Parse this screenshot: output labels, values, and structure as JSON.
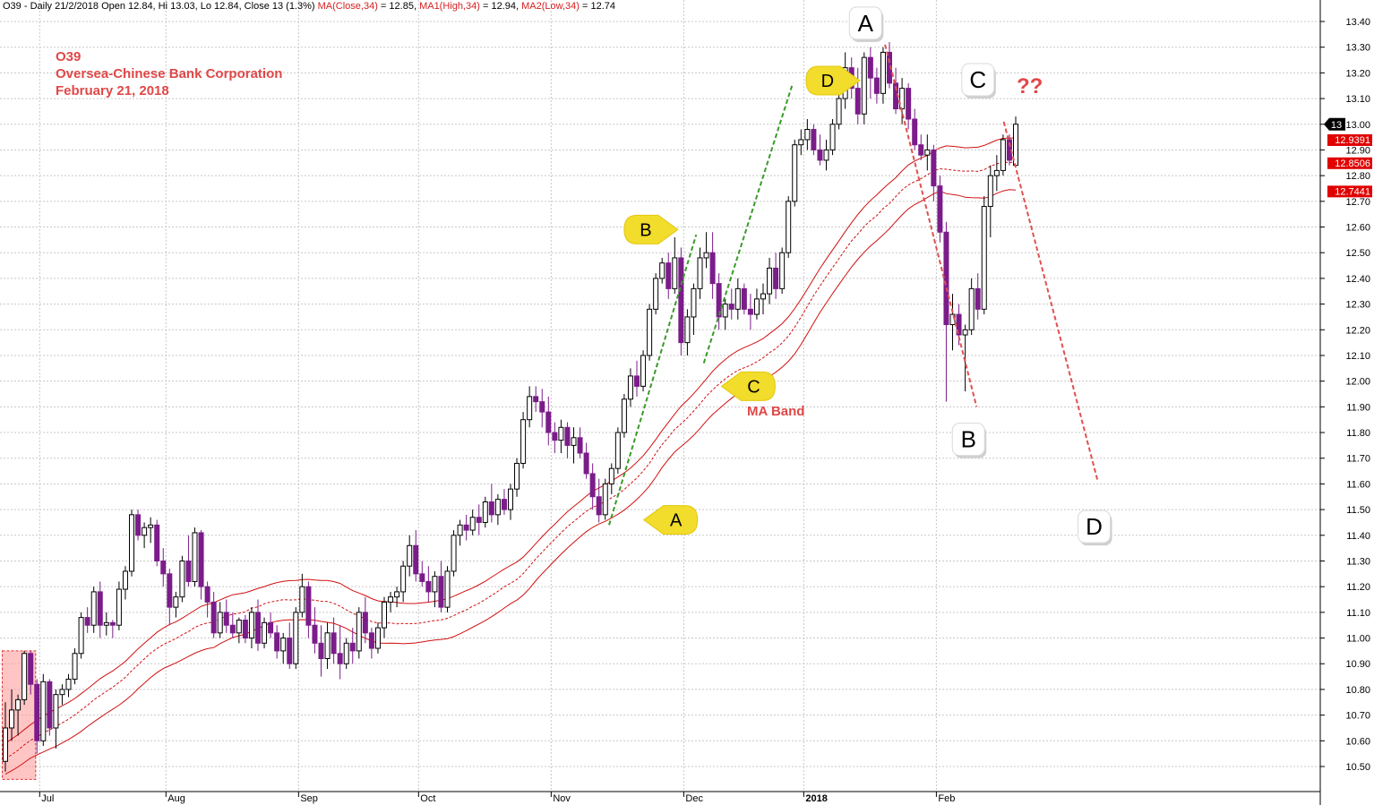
{
  "header": {
    "prefix": "O39 - Daily 21/2/2018 Open 12.84, Hi 13.03, Lo 12.84, Close 13 (1.3%)",
    "ma": "MA(Close,34)",
    "ma_val": " = 12.85, ",
    "ma1": "MA1(High,34)",
    "ma1_val": " = 12.94, ",
    "ma2": "MA2(Low,34)",
    "ma2_val": " = 12.74"
  },
  "title": {
    "ticker": "O39",
    "company": "Oversea-Chinese Bank Corporation",
    "date": "February 21, 2018"
  },
  "chart_data": {
    "type": "candlestick",
    "ylim": [
      10.43,
      13.45
    ],
    "y_ticks": [
      "10.50",
      "10.60",
      "10.70",
      "10.80",
      "10.90",
      "11.00",
      "11.10",
      "11.20",
      "11.30",
      "11.40",
      "11.50",
      "11.60",
      "11.70",
      "11.80",
      "11.90",
      "12.00",
      "12.10",
      "12.20",
      "12.30",
      "12.40",
      "12.50",
      "12.60",
      "12.70",
      "12.80",
      "12.90",
      "13.00",
      "13.10",
      "13.20",
      "13.30",
      "13.40"
    ],
    "x_labels": [
      {
        "label": "Jul",
        "bar": 6,
        "bold": false
      },
      {
        "label": "Aug",
        "bar": 26,
        "bold": false
      },
      {
        "label": "Sep",
        "bar": 47,
        "bold": false
      },
      {
        "label": "Oct",
        "bar": 66,
        "bold": false
      },
      {
        "label": "Nov",
        "bar": 87,
        "bold": false
      },
      {
        "label": "Dec",
        "bar": 108,
        "bold": false
      },
      {
        "label": "2018",
        "bar": 127,
        "bold": true
      },
      {
        "label": "Feb",
        "bar": 148,
        "bold": false
      }
    ],
    "price_tags": [
      {
        "label": "13",
        "value": 13.0,
        "color": "#000000"
      },
      {
        "label": "12.9391",
        "value": 12.94,
        "color": "#e00000"
      },
      {
        "label": "12.8506",
        "value": 12.85,
        "color": "#e00000"
      },
      {
        "label": "12.7441",
        "value": 12.74,
        "color": "#e00000"
      }
    ],
    "annotation_labels": {
      "ma_band": "MA Band",
      "question": "??"
    },
    "wave_labels_big": [
      {
        "label": "A",
        "bar": 136.5,
        "value": 13.39
      },
      {
        "label": "C",
        "bar": 154.3,
        "value": 13.17
      },
      {
        "label": "B",
        "bar": 152.8,
        "value": 11.77
      },
      {
        "label": "D",
        "bar": 172.7,
        "value": 11.43
      }
    ],
    "wave_labels_pointer": [
      {
        "label": "B",
        "bar": 101.4,
        "value": 12.59
      },
      {
        "label": "D",
        "bar": 130.2,
        "value": 13.17
      },
      {
        "label": "C",
        "bar": 118.5,
        "value": 11.98
      },
      {
        "label": "A",
        "bar": 106.2,
        "value": 11.46
      }
    ],
    "green_trendlines": [
      {
        "x1": 95.6,
        "y1": 11.44,
        "x2": 109.4,
        "y2": 12.57
      },
      {
        "x1": 110.6,
        "y1": 12.07,
        "x2": 124.7,
        "y2": 13.16
      }
    ],
    "red_trendlines": [
      {
        "x1": 139.3,
        "y1": 13.31,
        "x2": 153.8,
        "y2": 11.9
      },
      {
        "x1": 158.1,
        "y1": 13.01,
        "x2": 173.0,
        "y2": 11.61
      }
    ],
    "highlight_box": {
      "bar_start": -0.5,
      "bar_end": 4.8,
      "value_low": 10.45,
      "value_high": 10.95
    },
    "ohlc": [
      [
        10.52,
        10.75,
        10.48,
        10.65
      ],
      [
        10.65,
        10.8,
        10.6,
        10.72
      ],
      [
        10.72,
        10.78,
        10.62,
        10.76
      ],
      [
        10.76,
        10.95,
        10.74,
        10.94
      ],
      [
        10.94,
        10.95,
        10.78,
        10.82
      ],
      [
        10.82,
        10.84,
        10.55,
        10.6
      ],
      [
        10.6,
        10.86,
        10.58,
        10.83
      ],
      [
        10.83,
        10.84,
        10.62,
        10.65
      ],
      [
        10.65,
        10.8,
        10.57,
        10.78
      ],
      [
        10.78,
        10.82,
        10.74,
        10.8
      ],
      [
        10.8,
        10.86,
        10.77,
        10.84
      ],
      [
        10.84,
        10.96,
        10.82,
        10.94
      ],
      [
        10.94,
        11.1,
        10.92,
        11.08
      ],
      [
        11.08,
        11.12,
        11.02,
        11.05
      ],
      [
        11.05,
        11.2,
        11.02,
        11.18
      ],
      [
        11.18,
        11.22,
        11.0,
        11.05
      ],
      [
        11.05,
        11.1,
        11.01,
        11.06
      ],
      [
        11.06,
        11.07,
        11.0,
        11.05
      ],
      [
        11.05,
        11.22,
        11.03,
        11.19
      ],
      [
        11.19,
        11.28,
        11.15,
        11.26
      ],
      [
        11.26,
        11.5,
        11.24,
        11.48
      ],
      [
        11.48,
        11.5,
        11.38,
        11.4
      ],
      [
        11.4,
        11.45,
        11.35,
        11.43
      ],
      [
        11.43,
        11.47,
        11.37,
        11.44
      ],
      [
        11.44,
        11.46,
        11.28,
        11.3
      ],
      [
        11.3,
        11.35,
        11.2,
        11.25
      ],
      [
        11.25,
        11.27,
        11.05,
        11.12
      ],
      [
        11.12,
        11.18,
        11.08,
        11.16
      ],
      [
        11.16,
        11.32,
        11.14,
        11.3
      ],
      [
        11.3,
        11.4,
        11.2,
        11.22
      ],
      [
        11.22,
        11.43,
        11.2,
        11.41
      ],
      [
        11.41,
        11.42,
        11.15,
        11.2
      ],
      [
        11.2,
        11.22,
        11.08,
        11.14
      ],
      [
        11.14,
        11.18,
        11.0,
        11.02
      ],
      [
        11.02,
        11.14,
        11.0,
        11.1
      ],
      [
        11.1,
        11.15,
        11.02,
        11.05
      ],
      [
        11.05,
        11.1,
        11.0,
        11.02
      ],
      [
        11.02,
        11.08,
        10.98,
        11.07
      ],
      [
        11.07,
        11.09,
        10.98,
        11.0
      ],
      [
        11.0,
        11.12,
        10.96,
        11.1
      ],
      [
        11.1,
        11.15,
        10.95,
        10.98
      ],
      [
        10.98,
        11.08,
        10.96,
        11.06
      ],
      [
        11.06,
        11.1,
        11.0,
        11.02
      ],
      [
        11.02,
        11.05,
        10.92,
        10.95
      ],
      [
        10.95,
        11.02,
        10.9,
        11.0
      ],
      [
        11.0,
        11.06,
        10.88,
        10.9
      ],
      [
        10.9,
        11.12,
        10.88,
        11.1
      ],
      [
        11.1,
        11.25,
        11.08,
        11.2
      ],
      [
        11.2,
        11.22,
        11.0,
        11.05
      ],
      [
        11.05,
        11.12,
        10.94,
        10.98
      ],
      [
        10.98,
        11.05,
        10.85,
        10.92
      ],
      [
        10.92,
        11.06,
        10.88,
        11.02
      ],
      [
        11.02,
        11.08,
        10.9,
        10.94
      ],
      [
        10.94,
        11.05,
        10.84,
        10.9
      ],
      [
        10.9,
        11.0,
        10.88,
        10.98
      ],
      [
        10.98,
        11.04,
        10.9,
        10.95
      ],
      [
        10.95,
        11.12,
        10.92,
        11.1
      ],
      [
        11.1,
        11.16,
        10.98,
        11.02
      ],
      [
        11.02,
        11.04,
        10.92,
        10.96
      ],
      [
        10.96,
        11.06,
        10.94,
        11.04
      ],
      [
        11.04,
        11.16,
        11.0,
        11.14
      ],
      [
        11.14,
        11.18,
        11.1,
        11.16
      ],
      [
        11.16,
        11.2,
        11.12,
        11.18
      ],
      [
        11.18,
        11.3,
        11.14,
        11.28
      ],
      [
        11.28,
        11.4,
        11.24,
        11.36
      ],
      [
        11.36,
        11.42,
        11.22,
        11.25
      ],
      [
        11.25,
        11.3,
        11.2,
        11.22
      ],
      [
        11.22,
        11.28,
        11.14,
        11.18
      ],
      [
        11.18,
        11.26,
        11.12,
        11.24
      ],
      [
        11.24,
        11.3,
        11.1,
        11.12
      ],
      [
        11.12,
        11.28,
        11.1,
        11.26
      ],
      [
        11.26,
        11.42,
        11.24,
        11.4
      ],
      [
        11.4,
        11.46,
        11.36,
        11.44
      ],
      [
        11.44,
        11.48,
        11.38,
        11.42
      ],
      [
        11.42,
        11.5,
        11.4,
        11.47
      ],
      [
        11.47,
        11.52,
        11.4,
        11.45
      ],
      [
        11.45,
        11.55,
        11.43,
        11.53
      ],
      [
        11.53,
        11.6,
        11.45,
        11.48
      ],
      [
        11.48,
        11.56,
        11.44,
        11.54
      ],
      [
        11.54,
        11.58,
        11.48,
        11.5
      ],
      [
        11.5,
        11.6,
        11.46,
        11.58
      ],
      [
        11.58,
        11.7,
        11.55,
        11.68
      ],
      [
        11.68,
        11.88,
        11.66,
        11.85
      ],
      [
        11.85,
        11.98,
        11.82,
        11.94
      ],
      [
        11.94,
        11.98,
        11.88,
        11.92
      ],
      [
        11.92,
        11.97,
        11.82,
        11.88
      ],
      [
        11.88,
        11.94,
        11.75,
        11.8
      ],
      [
        11.8,
        11.84,
        11.72,
        11.77
      ],
      [
        11.77,
        11.85,
        11.72,
        11.82
      ],
      [
        11.82,
        11.84,
        11.7,
        11.75
      ],
      [
        11.75,
        11.82,
        11.68,
        11.78
      ],
      [
        11.78,
        11.82,
        11.7,
        11.72
      ],
      [
        11.72,
        11.76,
        11.62,
        11.64
      ],
      [
        11.64,
        11.68,
        11.5,
        11.55
      ],
      [
        11.55,
        11.62,
        11.45,
        11.48
      ],
      [
        11.48,
        11.62,
        11.46,
        11.6
      ],
      [
        11.6,
        11.68,
        11.56,
        11.66
      ],
      [
        11.66,
        11.82,
        11.64,
        11.8
      ],
      [
        11.8,
        11.95,
        11.78,
        11.93
      ],
      [
        11.93,
        12.05,
        11.9,
        12.02
      ],
      [
        12.02,
        12.08,
        11.94,
        11.98
      ],
      [
        11.98,
        12.12,
        11.96,
        12.1
      ],
      [
        12.1,
        12.3,
        12.08,
        12.28
      ],
      [
        12.28,
        12.42,
        12.26,
        12.4
      ],
      [
        12.4,
        12.48,
        12.38,
        12.46
      ],
      [
        12.46,
        12.5,
        12.32,
        12.36
      ],
      [
        12.36,
        12.56,
        12.34,
        12.48
      ],
      [
        12.48,
        12.52,
        12.1,
        12.15
      ],
      [
        12.15,
        12.28,
        12.1,
        12.25
      ],
      [
        12.25,
        12.38,
        12.18,
        12.36
      ],
      [
        12.36,
        12.52,
        12.32,
        12.48
      ],
      [
        12.48,
        12.58,
        12.44,
        12.5
      ],
      [
        12.5,
        12.58,
        12.32,
        12.38
      ],
      [
        12.38,
        12.42,
        12.2,
        12.25
      ],
      [
        12.25,
        12.32,
        12.2,
        12.3
      ],
      [
        12.3,
        12.36,
        12.24,
        12.28
      ],
      [
        12.28,
        12.4,
        12.24,
        12.36
      ],
      [
        12.36,
        12.38,
        12.26,
        12.28
      ],
      [
        12.28,
        12.34,
        12.2,
        12.26
      ],
      [
        12.26,
        12.36,
        12.24,
        12.32
      ],
      [
        12.32,
        12.38,
        12.26,
        12.34
      ],
      [
        12.34,
        12.48,
        12.3,
        12.44
      ],
      [
        12.44,
        12.5,
        12.32,
        12.36
      ],
      [
        12.36,
        12.52,
        12.34,
        12.5
      ],
      [
        12.5,
        12.72,
        12.48,
        12.7
      ],
      [
        12.7,
        12.94,
        12.68,
        12.92
      ],
      [
        12.92,
        12.98,
        12.88,
        12.94
      ],
      [
        12.94,
        13.02,
        12.9,
        12.98
      ],
      [
        12.98,
        13.0,
        12.88,
        12.9
      ],
      [
        12.9,
        12.96,
        12.84,
        12.86
      ],
      [
        12.86,
        12.94,
        12.82,
        12.9
      ],
      [
        12.9,
        13.02,
        12.88,
        13.0
      ],
      [
        13.0,
        13.14,
        12.98,
        13.1
      ],
      [
        13.1,
        13.28,
        13.06,
        13.22
      ],
      [
        13.22,
        13.26,
        13.1,
        13.14
      ],
      [
        13.14,
        13.22,
        13.0,
        13.04
      ],
      [
        13.04,
        13.28,
        13.0,
        13.26
      ],
      [
        13.26,
        13.3,
        13.1,
        13.18
      ],
      [
        13.18,
        13.22,
        13.08,
        13.12
      ],
      [
        13.12,
        13.3,
        13.08,
        13.28
      ],
      [
        13.28,
        13.32,
        13.14,
        13.16
      ],
      [
        13.16,
        13.22,
        13.04,
        13.06
      ],
      [
        13.06,
        13.18,
        13.0,
        13.14
      ],
      [
        13.14,
        13.16,
        12.98,
        13.02
      ],
      [
        13.02,
        13.06,
        12.9,
        12.92
      ],
      [
        12.92,
        12.96,
        12.86,
        12.88
      ],
      [
        12.88,
        12.96,
        12.82,
        12.9
      ],
      [
        12.9,
        12.92,
        12.7,
        12.76
      ],
      [
        12.76,
        12.8,
        12.54,
        12.58
      ],
      [
        12.58,
        12.62,
        11.92,
        12.22
      ],
      [
        12.22,
        12.34,
        12.12,
        12.26
      ],
      [
        12.26,
        12.3,
        12.14,
        12.18
      ],
      [
        12.18,
        12.22,
        11.96,
        12.2
      ],
      [
        12.2,
        12.4,
        12.18,
        12.36
      ],
      [
        12.36,
        12.42,
        12.24,
        12.28
      ],
      [
        12.28,
        12.72,
        12.26,
        12.68
      ],
      [
        12.68,
        12.84,
        12.56,
        12.8
      ],
      [
        12.8,
        12.88,
        12.74,
        12.82
      ],
      [
        12.82,
        12.96,
        12.8,
        12.94
      ],
      [
        12.94,
        12.96,
        12.84,
        12.86
      ],
      [
        12.84,
        13.03,
        12.84,
        13.0
      ]
    ]
  }
}
